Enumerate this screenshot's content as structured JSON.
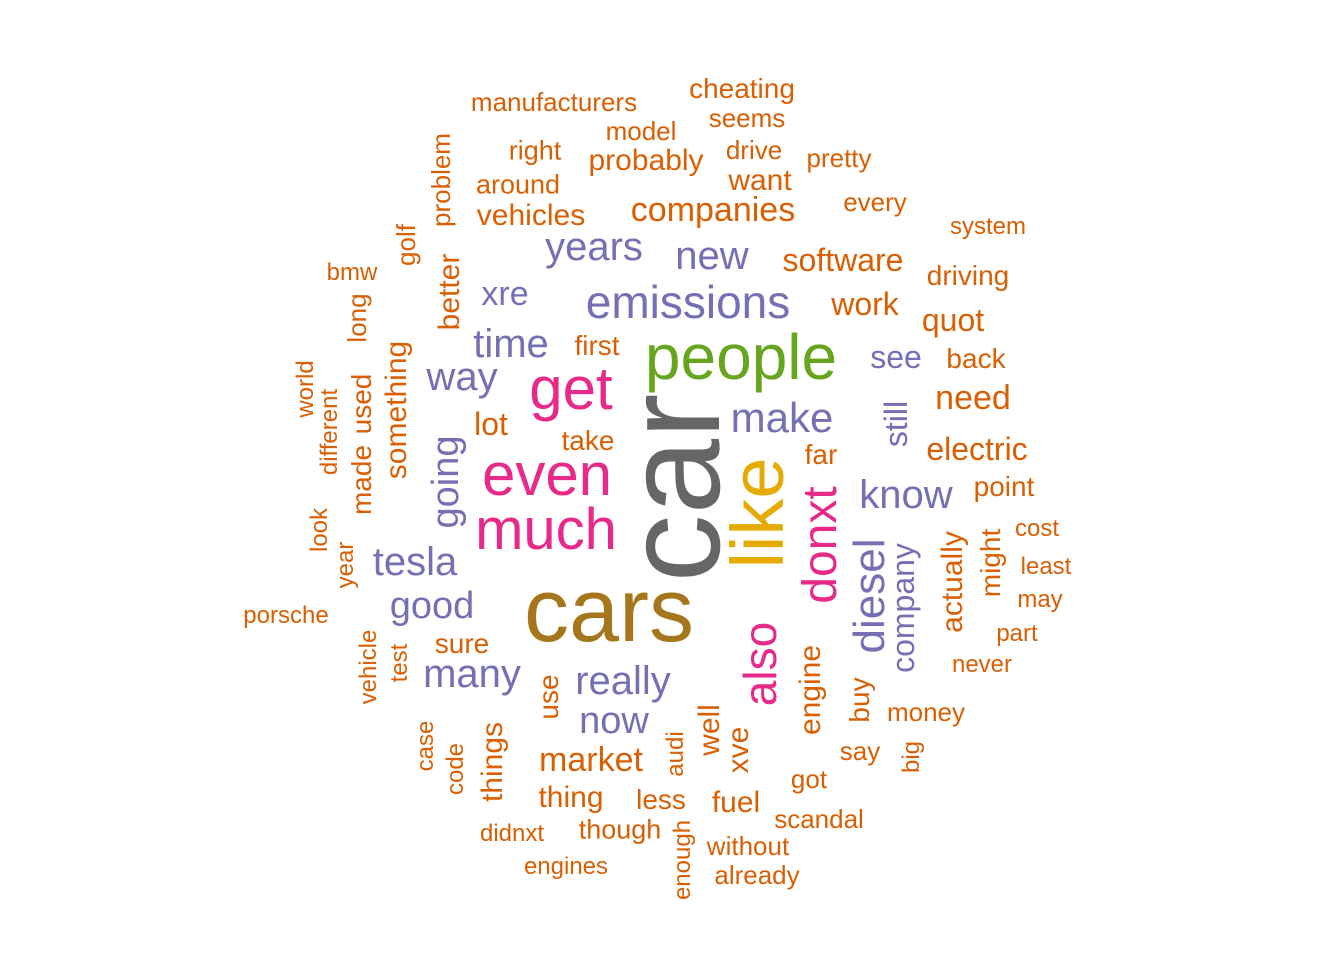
{
  "colors": {
    "orange": "#D95F02",
    "purple": "#7570B3",
    "magenta": "#E7298A",
    "green": "#66A61E",
    "yellow": "#E6AB02",
    "brown": "#A6761D",
    "gray": "#666666"
  },
  "words": [
    {
      "text": "car",
      "color": "gray",
      "rotated": true
    },
    {
      "text": "cars",
      "color": "brown",
      "rotated": false
    },
    {
      "text": "like",
      "color": "yellow",
      "rotated": true
    },
    {
      "text": "people",
      "color": "green",
      "rotated": false
    },
    {
      "text": "get",
      "color": "magenta",
      "rotated": false
    },
    {
      "text": "even",
      "color": "magenta",
      "rotated": false
    },
    {
      "text": "much",
      "color": "magenta",
      "rotated": false
    },
    {
      "text": "donxt",
      "color": "magenta",
      "rotated": true
    },
    {
      "text": "also",
      "color": "magenta",
      "rotated": true
    },
    {
      "text": "emissions",
      "color": "purple",
      "rotated": false
    },
    {
      "text": "diesel",
      "color": "purple",
      "rotated": true
    },
    {
      "text": "make",
      "color": "purple",
      "rotated": false
    },
    {
      "text": "years",
      "color": "purple",
      "rotated": false
    },
    {
      "text": "new",
      "color": "purple",
      "rotated": false
    },
    {
      "text": "time",
      "color": "purple",
      "rotated": false
    },
    {
      "text": "way",
      "color": "purple",
      "rotated": false
    },
    {
      "text": "know",
      "color": "purple",
      "rotated": false
    },
    {
      "text": "really",
      "color": "purple",
      "rotated": false
    },
    {
      "text": "tesla",
      "color": "purple",
      "rotated": false
    },
    {
      "text": "many",
      "color": "purple",
      "rotated": false
    },
    {
      "text": "now",
      "color": "purple",
      "rotated": false
    },
    {
      "text": "good",
      "color": "purple",
      "rotated": false
    },
    {
      "text": "going",
      "color": "purple",
      "rotated": true
    },
    {
      "text": "company",
      "color": "purple",
      "rotated": true
    },
    {
      "text": "still",
      "color": "purple",
      "rotated": true
    },
    {
      "text": "see",
      "color": "purple",
      "rotated": false
    },
    {
      "text": "xre",
      "color": "purple",
      "rotated": false
    },
    {
      "text": "companies",
      "color": "orange",
      "rotated": false
    },
    {
      "text": "software",
      "color": "orange",
      "rotated": false
    },
    {
      "text": "work",
      "color": "orange",
      "rotated": false
    },
    {
      "text": "vehicles",
      "color": "orange",
      "rotated": false
    },
    {
      "text": "probably",
      "color": "orange",
      "rotated": false
    },
    {
      "text": "want",
      "color": "orange",
      "rotated": false
    },
    {
      "text": "quot",
      "color": "orange",
      "rotated": false
    },
    {
      "text": "need",
      "color": "orange",
      "rotated": false
    },
    {
      "text": "electric",
      "color": "orange",
      "rotated": false
    },
    {
      "text": "market",
      "color": "orange",
      "rotated": false
    },
    {
      "text": "thing",
      "color": "orange",
      "rotated": false
    },
    {
      "text": "engine",
      "color": "orange",
      "rotated": true
    },
    {
      "text": "lot",
      "color": "orange",
      "rotated": false
    },
    {
      "text": "something",
      "color": "orange",
      "rotated": true
    },
    {
      "text": "better",
      "color": "orange",
      "rotated": true
    },
    {
      "text": "actually",
      "color": "orange",
      "rotated": true
    },
    {
      "text": "fuel",
      "color": "orange",
      "rotated": false
    },
    {
      "text": "less",
      "color": "orange",
      "rotated": false
    },
    {
      "text": "well",
      "color": "orange",
      "rotated": true
    },
    {
      "text": "xve",
      "color": "orange",
      "rotated": true
    },
    {
      "text": "things",
      "color": "orange",
      "rotated": true
    },
    {
      "text": "made",
      "color": "orange",
      "rotated": true
    },
    {
      "text": "used",
      "color": "orange",
      "rotated": true
    },
    {
      "text": "buy",
      "color": "orange",
      "rotated": true
    },
    {
      "text": "use",
      "color": "orange",
      "rotated": true
    },
    {
      "text": "sure",
      "color": "orange",
      "rotated": false
    },
    {
      "text": "take",
      "color": "orange",
      "rotated": false
    },
    {
      "text": "first",
      "color": "orange",
      "rotated": false
    },
    {
      "text": "far",
      "color": "orange",
      "rotated": false
    },
    {
      "text": "point",
      "color": "orange",
      "rotated": false
    },
    {
      "text": "driving",
      "color": "orange",
      "rotated": false
    },
    {
      "text": "back",
      "color": "orange",
      "rotated": false
    },
    {
      "text": "might",
      "color": "orange",
      "rotated": true
    },
    {
      "text": "around",
      "color": "orange",
      "rotated": false
    },
    {
      "text": "right",
      "color": "orange",
      "rotated": false
    },
    {
      "text": "model",
      "color": "orange",
      "rotated": false
    },
    {
      "text": "drive",
      "color": "orange",
      "rotated": false
    },
    {
      "text": "pretty",
      "color": "orange",
      "rotated": false
    },
    {
      "text": "seems",
      "color": "orange",
      "rotated": false
    },
    {
      "text": "cheating",
      "color": "orange",
      "rotated": false
    },
    {
      "text": "manufacturers",
      "color": "orange",
      "rotated": false
    },
    {
      "text": "every",
      "color": "orange",
      "rotated": false
    },
    {
      "text": "system",
      "color": "orange",
      "rotated": false
    },
    {
      "text": "problem",
      "color": "orange",
      "rotated": true
    },
    {
      "text": "golf",
      "color": "orange",
      "rotated": true
    },
    {
      "text": "bmw",
      "color": "orange",
      "rotated": false
    },
    {
      "text": "long",
      "color": "orange",
      "rotated": true
    },
    {
      "text": "world",
      "color": "orange",
      "rotated": true
    },
    {
      "text": "different",
      "color": "orange",
      "rotated": true
    },
    {
      "text": "look",
      "color": "orange",
      "rotated": true
    },
    {
      "text": "year",
      "color": "orange",
      "rotated": true
    },
    {
      "text": "porsche",
      "color": "orange",
      "rotated": false
    },
    {
      "text": "vehicle",
      "color": "orange",
      "rotated": true
    },
    {
      "text": "test",
      "color": "orange",
      "rotated": true
    },
    {
      "text": "case",
      "color": "orange",
      "rotated": true
    },
    {
      "text": "code",
      "color": "orange",
      "rotated": true
    },
    {
      "text": "didnxt",
      "color": "orange",
      "rotated": false
    },
    {
      "text": "though",
      "color": "orange",
      "rotated": false
    },
    {
      "text": "engines",
      "color": "orange",
      "rotated": false
    },
    {
      "text": "enough",
      "color": "orange",
      "rotated": true
    },
    {
      "text": "audi",
      "color": "orange",
      "rotated": true
    },
    {
      "text": "without",
      "color": "orange",
      "rotated": false
    },
    {
      "text": "already",
      "color": "orange",
      "rotated": false
    },
    {
      "text": "scandal",
      "color": "orange",
      "rotated": false
    },
    {
      "text": "got",
      "color": "orange",
      "rotated": false
    },
    {
      "text": "say",
      "color": "orange",
      "rotated": false
    },
    {
      "text": "big",
      "color": "orange",
      "rotated": true
    },
    {
      "text": "money",
      "color": "orange",
      "rotated": false
    },
    {
      "text": "never",
      "color": "orange",
      "rotated": false
    },
    {
      "text": "part",
      "color": "orange",
      "rotated": false
    },
    {
      "text": "may",
      "color": "orange",
      "rotated": false
    },
    {
      "text": "least",
      "color": "orange",
      "rotated": false
    },
    {
      "text": "cost",
      "color": "orange",
      "rotated": false
    }
  ]
}
